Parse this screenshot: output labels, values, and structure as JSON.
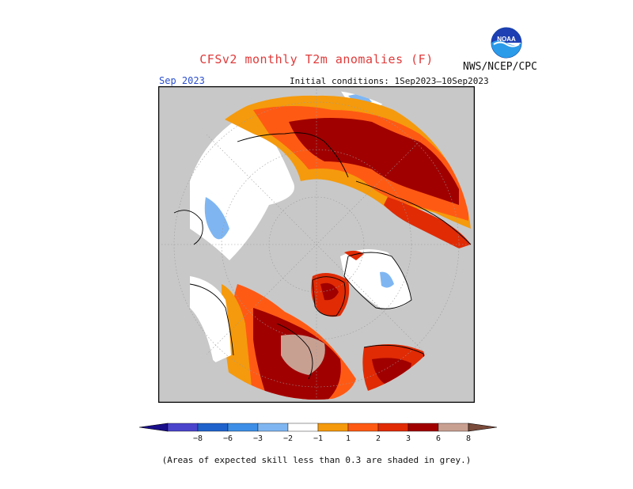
{
  "header": {
    "title": "CFSv2 monthly T2m anomalies (F)",
    "agency": "NWS/NCEP/CPC",
    "logo_text": "NOAA",
    "month": "Sep 2023",
    "initial_conditions": "Initial conditions: 1Sep2023—10Sep2023"
  },
  "colorbar": {
    "tick_labels": [
      "−8",
      "−6",
      "−3",
      "−2",
      "−1",
      "1",
      "2",
      "3",
      "6",
      "8"
    ],
    "colors": [
      "#1a0f8a",
      "#4a44cc",
      "#1f62cc",
      "#3d8ee6",
      "#7fb6f2",
      "#ffffff",
      "#f59a0c",
      "#ff5a14",
      "#e02b05",
      "#a00000",
      "#c8a092",
      "#7a4a3a"
    ]
  },
  "map": {
    "projection": "north-polar-stereographic",
    "missing_color": "#c8c8c8"
  },
  "footnote": "(Areas of expected skill less than 0.3 are shaded in grey.)"
}
